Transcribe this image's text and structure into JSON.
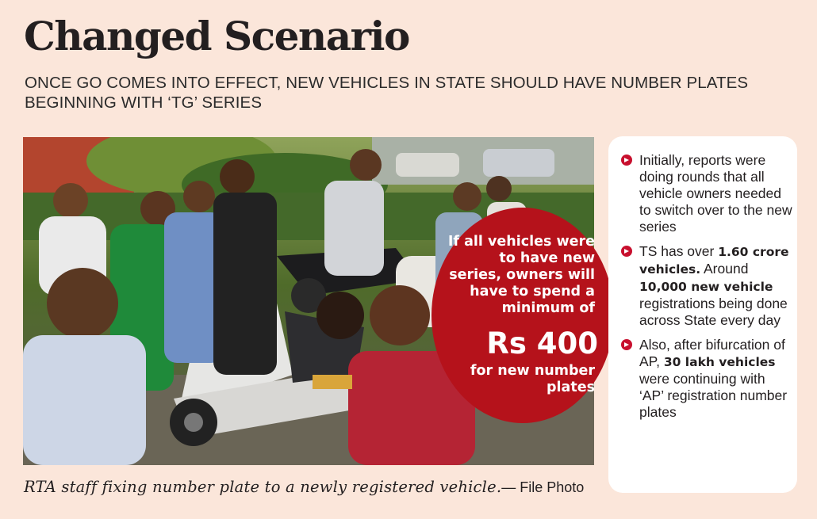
{
  "headline": "Changed Scenario",
  "subheadline": "ONCE GO COMES INTO EFFECT, NEW VEHICLES IN STATE SHOULD HAVE NUMBER PLATES BEGINNING WITH ‘TG’ SERIES",
  "callout": {
    "text": "If all vehicles were to have new series, owners will have to spend a minimum of",
    "amount": "Rs 400",
    "suffix": "for new number plates",
    "color": "#b5121b"
  },
  "facts": [
    {
      "segments": [
        "Initially, reports were doing rounds that all vehicle owners needed to switch over to the new series"
      ]
    },
    {
      "pre": "TS has over ",
      "bold1": "1.60 crore vehicles.",
      "mid": " Around ",
      "bold2": "10,000 new vehicle",
      "post": " registrations being done across State every day"
    },
    {
      "pre": "Also, after bifurcation of AP, ",
      "bold1": "30 lakh vehicles",
      "post": " were continuing with ‘AP’ registration number plates"
    }
  ],
  "caption": {
    "text": "RTA staff fixing number plate to a newly registered vehicle.",
    "credit": "— File Photo"
  },
  "colors": {
    "background": "#fbe6da",
    "accent_red": "#c8102e",
    "sidebar": "#ffffff"
  }
}
